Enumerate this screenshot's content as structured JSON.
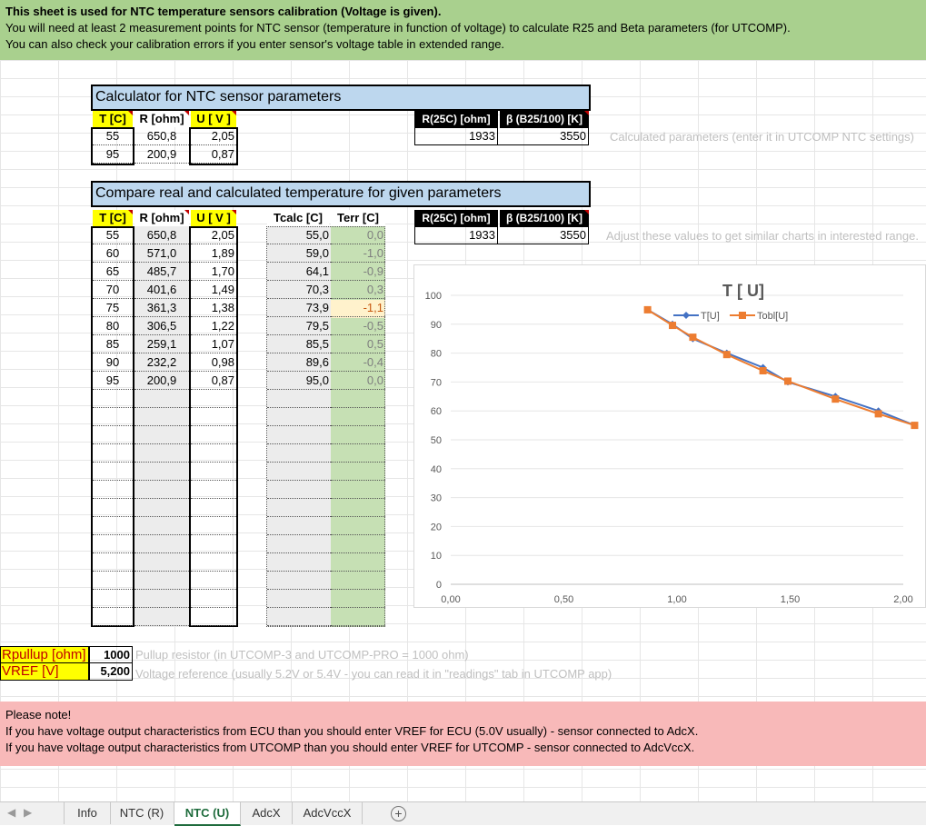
{
  "banner": {
    "line1": "This sheet is used for NTC temperature sensors calibration (Voltage is given).",
    "line2": "You will need at least 2 measurement points for NTC sensor (temperature in function of voltage) to calculate R25 and Beta parameters (for UTCOMP).",
    "line3": "You can also check your calibration errors if you enter sensor's voltage table in extended range."
  },
  "calculator": {
    "title": "Calculator for NTC sensor parameters",
    "headers": [
      "T [C]",
      "R [ohm]",
      "U [ V ]"
    ],
    "rows": [
      {
        "t": "55",
        "r": "650,8",
        "u": "2,05"
      },
      {
        "t": "95",
        "r": "200,9",
        "u": "0,87"
      }
    ],
    "param_headers": [
      "R(25C) [ohm]",
      "β (B25/100) [K]"
    ],
    "r25": "1933",
    "beta": "3550",
    "hint": "Calculated parameters (enter it in UTCOMP NTC settings)"
  },
  "compare": {
    "title": "Compare real and calculated temperature for given parameters",
    "headers": [
      "T [C]",
      "R [ohm]",
      "U [ V ]",
      "Tcalc [C]",
      "Terr [C]"
    ],
    "rows": [
      {
        "t": "55",
        "r": "650,8",
        "u": "2,05",
        "tcalc": "55,0",
        "terr": "0,0"
      },
      {
        "t": "60",
        "r": "571,0",
        "u": "1,89",
        "tcalc": "59,0",
        "terr": "-1,0"
      },
      {
        "t": "65",
        "r": "485,7",
        "u": "1,70",
        "tcalc": "64,1",
        "terr": "-0,9"
      },
      {
        "t": "70",
        "r": "401,6",
        "u": "1,49",
        "tcalc": "70,3",
        "terr": "0,3"
      },
      {
        "t": "75",
        "r": "361,3",
        "u": "1,38",
        "tcalc": "73,9",
        "terr": "-1,1"
      },
      {
        "t": "80",
        "r": "306,5",
        "u": "1,22",
        "tcalc": "79,5",
        "terr": "-0,5"
      },
      {
        "t": "85",
        "r": "259,1",
        "u": "1,07",
        "tcalc": "85,5",
        "terr": "0,5"
      },
      {
        "t": "90",
        "r": "232,2",
        "u": "0,98",
        "tcalc": "89,6",
        "terr": "-0,4"
      },
      {
        "t": "95",
        "r": "200,9",
        "u": "0,87",
        "tcalc": "95,0",
        "terr": "0,0"
      }
    ],
    "param_headers": [
      "R(25C) [ohm]",
      "β (B25/100) [K]"
    ],
    "r25": "1933",
    "beta": "3550",
    "hint": "Adjust these values to get similar charts in interested range."
  },
  "settings": {
    "pullup_label": "Rpullup [ohm]",
    "pullup_value": "1000",
    "pullup_hint": "Pullup resistor (in UTCOMP-3 and UTCOMP-PRO = 1000 ohm)",
    "vref_label": "VREF [V]",
    "vref_value": "5,200",
    "vref_hint": "Voltage reference (usually 5.2V or 5.4V - you can read it in \"readings\" tab in UTCOMP app)"
  },
  "note": {
    "line1": "Please note!",
    "line2": "If you have voltage output characteristics from ECU than you should enter VREF for ECU (5.0V usually) - sensor connected to AdcX.",
    "line3": "If you have voltage output characteristics from UTCOMP than you should enter VREF for UTCOMP - sensor connected to AdcVccX."
  },
  "chart_data": {
    "type": "line",
    "title": "T [ U]",
    "xlim": [
      0,
      2.0
    ],
    "ylim": [
      0,
      100
    ],
    "x_ticks": [
      "0,00",
      "0,50",
      "1,00",
      "1,50",
      "2,00"
    ],
    "y_ticks": [
      "0",
      "10",
      "20",
      "30",
      "40",
      "50",
      "60",
      "70",
      "80",
      "90",
      "100"
    ],
    "legend_position": "top-right",
    "series": [
      {
        "name": "T[U]",
        "color": "#4472c4",
        "x": [
          2.05,
          1.89,
          1.7,
          1.49,
          1.38,
          1.22,
          1.07,
          0.98,
          0.87
        ],
        "y": [
          55,
          60,
          65,
          70,
          75,
          80,
          85,
          90,
          95
        ]
      },
      {
        "name": "Tobl[U]",
        "color": "#ed7d31",
        "x": [
          2.05,
          1.89,
          1.7,
          1.49,
          1.38,
          1.22,
          1.07,
          0.98,
          0.87
        ],
        "y": [
          55.0,
          59.0,
          64.1,
          70.3,
          73.9,
          79.5,
          85.5,
          89.6,
          95.0
        ]
      }
    ]
  },
  "tabs": [
    "Info",
    "NTC (R)",
    "NTC (U)",
    "AdcX",
    "AdcVccX"
  ],
  "active_tab": "NTC (U)",
  "nav_icons": [
    "prev-sheet-icon",
    "next-sheet-icon",
    "add-sheet-icon"
  ]
}
